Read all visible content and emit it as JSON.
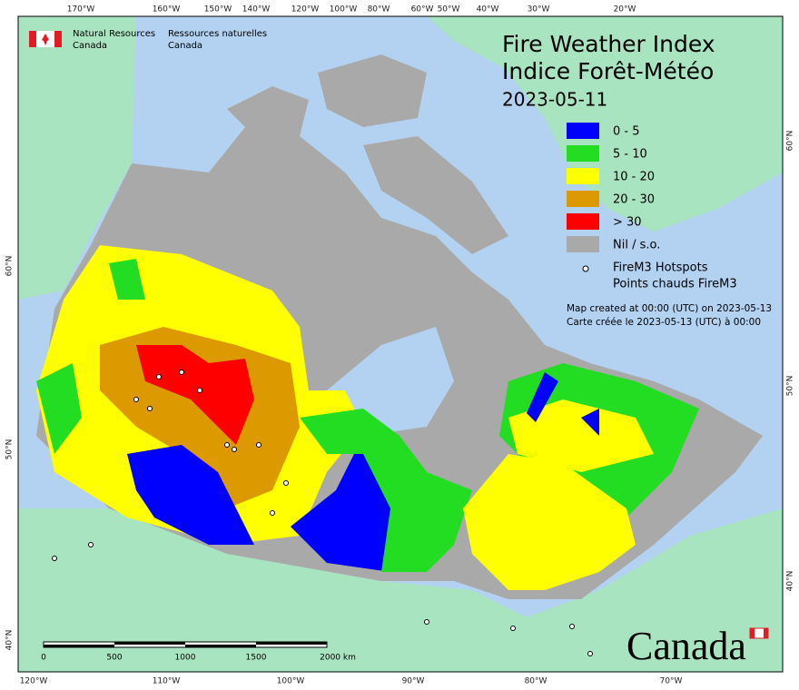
{
  "header": {
    "agency_en": "Natural Resources",
    "agency_en_2": "Canada",
    "agency_fr": "Ressources naturelles",
    "agency_fr_2": "Canada"
  },
  "title": {
    "line1": "Fire Weather Index",
    "line2": "Indice Forêt-Météo",
    "date": "2023-05-11"
  },
  "legend": {
    "items": [
      {
        "label": "0 - 5",
        "color": "#0000ff"
      },
      {
        "label": "5 - 10",
        "color": "#22dd22"
      },
      {
        "label": "10 - 20",
        "color": "#ffff00"
      },
      {
        "label": "20 - 30",
        "color": "#dd9900"
      },
      {
        "label": "> 30",
        "color": "#ff0000"
      },
      {
        "label": "Nil / s.o.",
        "color": "#a9a9a9"
      }
    ],
    "hotspots_1": "FireM3 Hotspots",
    "hotspots_2": "Points chauds FireM3"
  },
  "notes": [
    "Map created at 00:00 (UTC) on 2023-05-13",
    "Carte créée le 2023-05-13 (UTC) à 00:00"
  ],
  "graticule": {
    "top": [
      "170°W",
      "160°W",
      "150°W",
      "140°W",
      "120°W",
      "100°W",
      "80°W",
      "60°W",
      "50°W",
      "40°W",
      "30°W",
      "20°W"
    ],
    "bottom": [
      "120°W",
      "110°W",
      "100°W",
      "90°W",
      "80°W",
      "70°W"
    ],
    "left": [
      "60°N",
      "50°N",
      "40°N"
    ],
    "right": [
      "60°N",
      "50°N",
      "40°N"
    ]
  },
  "scale_bar": [
    "0",
    "500",
    "1000",
    "1500",
    "2000 km"
  ],
  "wordmark": "Canada"
}
